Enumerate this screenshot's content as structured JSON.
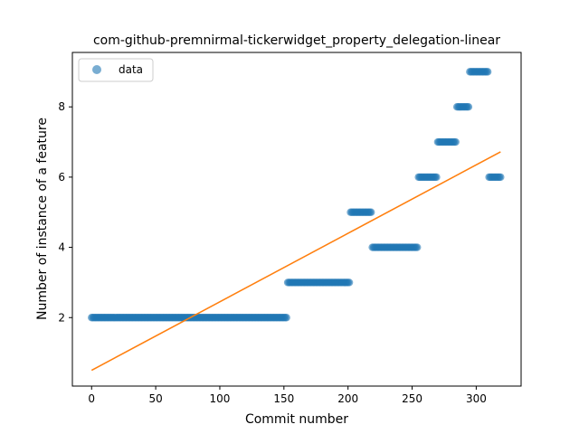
{
  "chart_data": {
    "type": "scatter",
    "title": "com-github-premnirmal-tickerwidget_property_delegation-linear",
    "xlabel": "Commit number",
    "ylabel": "Number of instance of a feature",
    "xlim": [
      -15,
      335
    ],
    "ylim": [
      0.05,
      9.55
    ],
    "xticks": [
      0,
      50,
      100,
      150,
      200,
      250,
      300
    ],
    "yticks": [
      2,
      4,
      6,
      8
    ],
    "grid": false,
    "legend": {
      "placement": "top-left",
      "entries": [
        "data"
      ]
    },
    "series": [
      {
        "name": "data",
        "type": "scatter",
        "color": "#1f77b4",
        "segments": [
          {
            "x_start": 0,
            "x_end": 152,
            "y": 2
          },
          {
            "x_start": 153,
            "x_end": 201,
            "y": 3
          },
          {
            "x_start": 202,
            "x_end": 218,
            "y": 5
          },
          {
            "x_start": 219,
            "x_end": 254,
            "y": 4
          },
          {
            "x_start": 255,
            "x_end": 269,
            "y": 6
          },
          {
            "x_start": 270,
            "x_end": 284,
            "y": 7
          },
          {
            "x_start": 285,
            "x_end": 294,
            "y": 8
          },
          {
            "x_start": 295,
            "x_end": 309,
            "y": 9
          },
          {
            "x_start": 310,
            "x_end": 319,
            "y": 6
          }
        ]
      },
      {
        "type": "line",
        "color": "#ff7f0e",
        "x": [
          0,
          319
        ],
        "y": [
          0.5,
          6.72
        ]
      }
    ]
  }
}
